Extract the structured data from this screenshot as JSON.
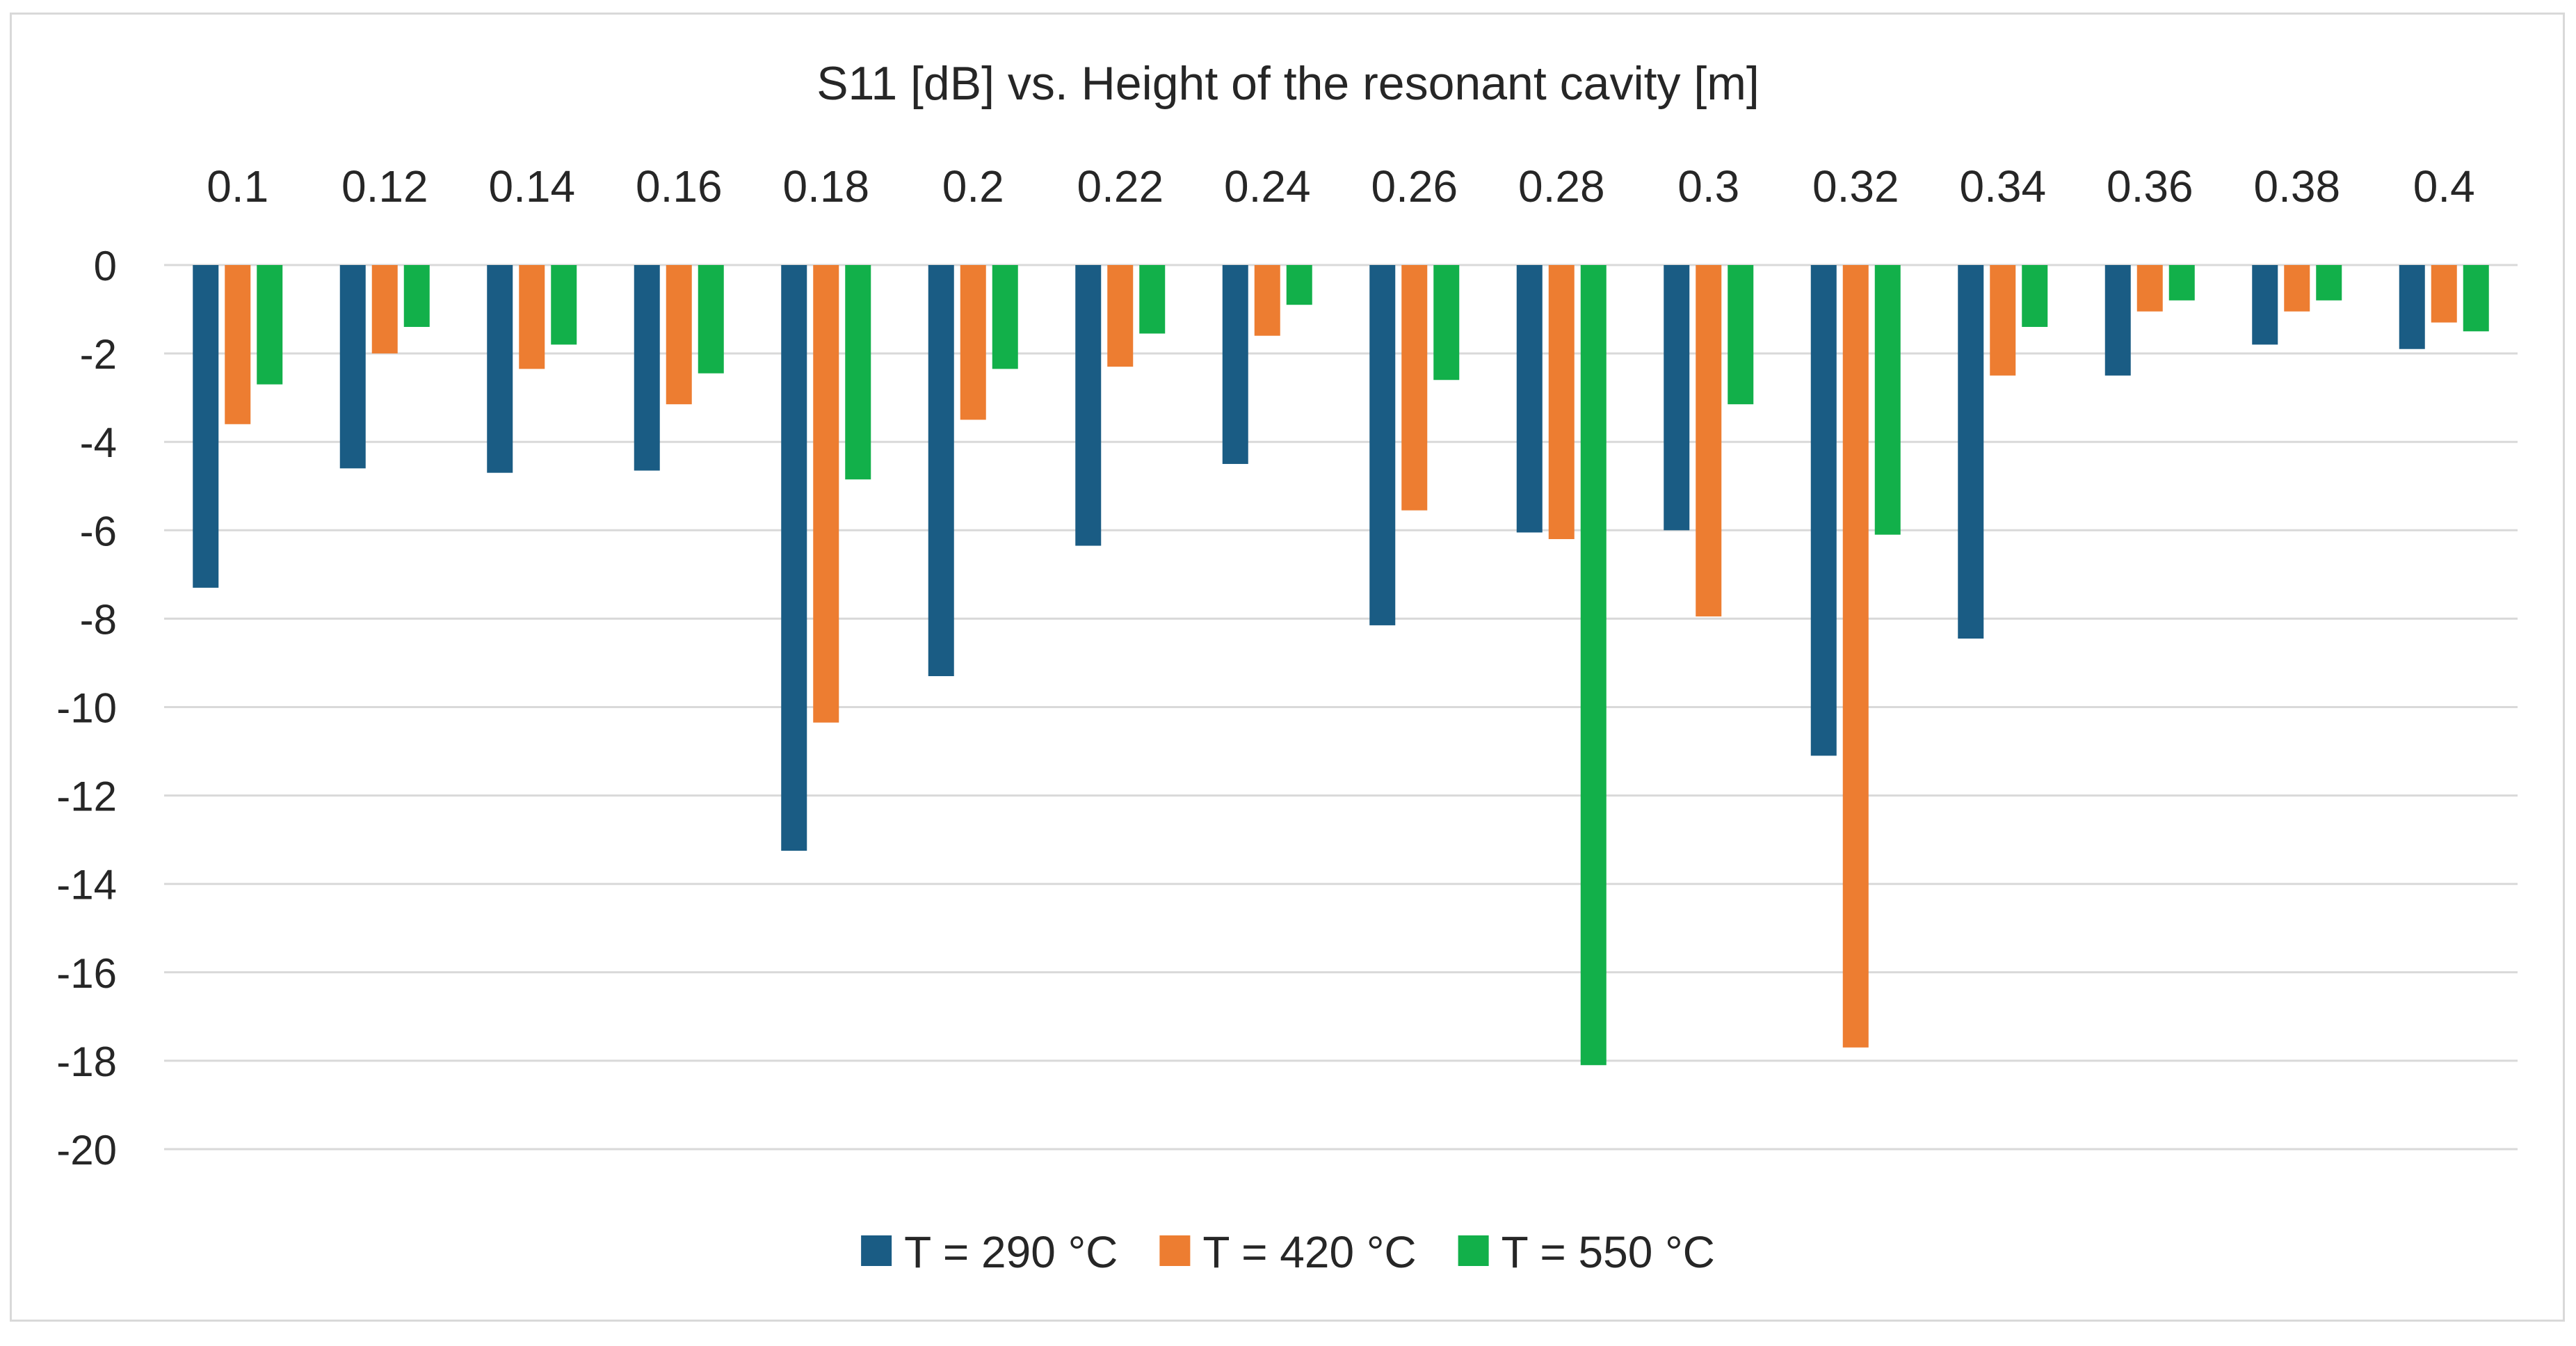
{
  "chart_data": {
    "type": "bar",
    "title": "S11 [dB] vs. Height of the resonant cavity [m]",
    "xlabel": "",
    "ylabel": "",
    "categories": [
      "0.1",
      "0.12",
      "0.14",
      "0.16",
      "0.18",
      "0.2",
      "0.22",
      "0.24",
      "0.26",
      "0.28",
      "0.3",
      "0.32",
      "0.34",
      "0.36",
      "0.38",
      "0.4"
    ],
    "y_ticks": [
      "0",
      "-2",
      "-4",
      "-6",
      "-8",
      "-10",
      "-12",
      "-14",
      "-16",
      "-18",
      "-20"
    ],
    "ylim": [
      -20,
      0
    ],
    "x_axis_position": "top",
    "grid": true,
    "legend_position": "bottom",
    "series": [
      {
        "name": "T = 290 °C",
        "color": "#1a5c84",
        "values": [
          -7.3,
          -4.6,
          -4.7,
          -4.65,
          -13.25,
          -9.3,
          -6.35,
          -4.5,
          -8.15,
          -6.05,
          -6.0,
          -11.1,
          -8.45,
          -2.5,
          -1.8,
          -1.9
        ]
      },
      {
        "name": "T = 420 °C",
        "color": "#ed7d31",
        "values": [
          -3.6,
          -2.0,
          -2.35,
          -3.15,
          -10.35,
          -3.5,
          -2.3,
          -1.6,
          -5.55,
          -6.2,
          -7.95,
          -17.7,
          -2.5,
          -1.05,
          -1.05,
          -1.3
        ]
      },
      {
        "name": "T = 550 °C",
        "color": "#12b04a",
        "values": [
          -2.7,
          -1.4,
          -1.8,
          -2.45,
          -4.85,
          -2.35,
          -1.55,
          -0.9,
          -2.6,
          -18.1,
          -3.15,
          -6.1,
          -1.4,
          -0.8,
          -0.8,
          -1.5
        ]
      }
    ]
  }
}
